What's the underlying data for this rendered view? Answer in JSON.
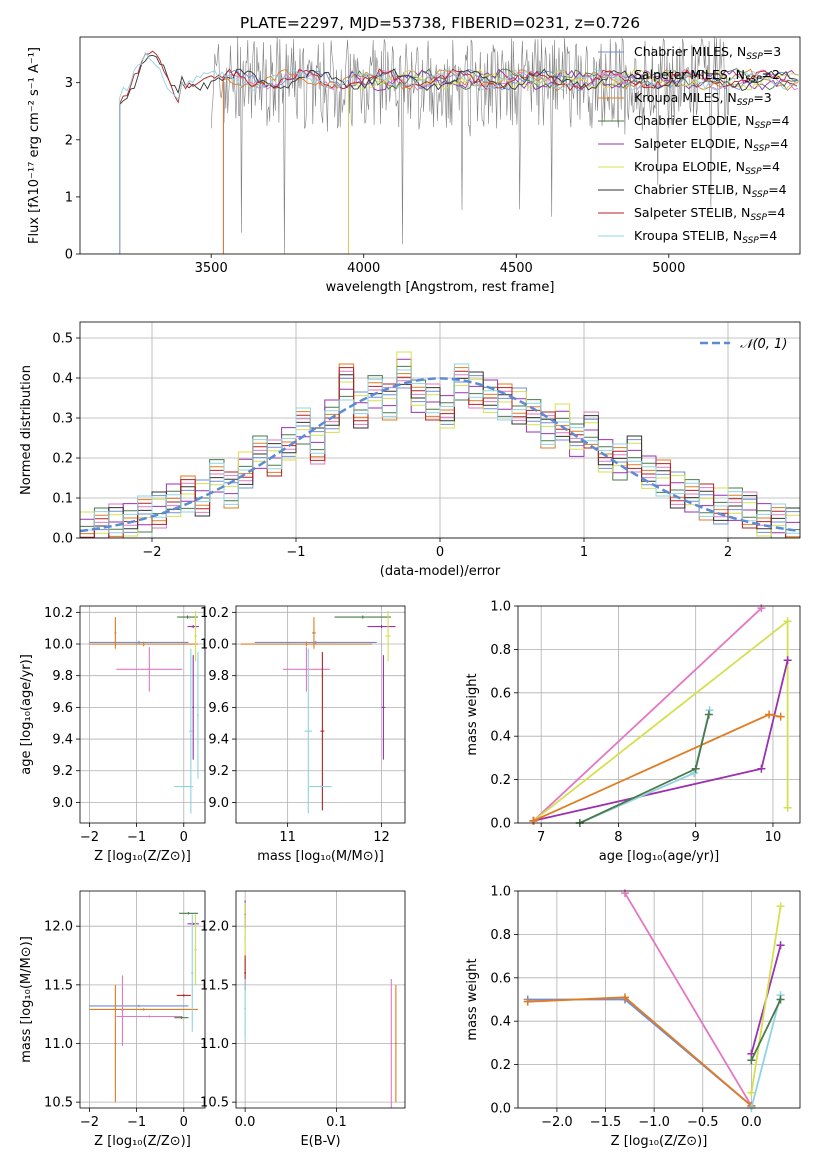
{
  "chart_data": [
    {
      "type": "line",
      "title": "PLATE=2297, MJD=53738, FIBERID=0231, z=0.726",
      "xlabel": "wavelength [Angstrom, rest frame]",
      "ylabel": "Flux [fλ10⁻¹⁷ erg cm⁻² s⁻¹ A⁻¹]",
      "xlim": [
        3070,
        5430
      ],
      "ylim": [
        0,
        3.8
      ],
      "xticks": [
        3500,
        4000,
        4500,
        5000
      ],
      "yticks": [
        0,
        1,
        2,
        3
      ],
      "grid": false,
      "legend_position": "right",
      "legend": [
        {
          "label": "Chabrier MILES, N_SSP=3",
          "color": "#6e8fd6"
        },
        {
          "label": "Salpeter MILES, N_SSP=2",
          "color": "#e377c2"
        },
        {
          "label": "Kroupa MILES, N_SSP=3",
          "color": "#e07b20"
        },
        {
          "label": "Chabrier ELODIE, N_SSP=4",
          "color": "#4a7a4a"
        },
        {
          "label": "Salpeter ELODIE, N_SSP=4",
          "color": "#9b30b0"
        },
        {
          "label": "Kroupa ELODIE, N_SSP=4",
          "color": "#d4e050"
        },
        {
          "label": "Chabrier STELIB, N_SSP=4",
          "color": "#333333"
        },
        {
          "label": "Salpeter STELIB, N_SSP=4",
          "color": "#b22222"
        },
        {
          "label": "Kroupa STELIB, N_SSP=4",
          "color": "#8fd3e0"
        }
      ],
      "model_start_wavelength": {
        "MILES": 3540,
        "ELODIE": 3950,
        "STELIB": 3200
      },
      "model_plateau_flux": 3.05,
      "data_range": [
        3500,
        5200
      ]
    },
    {
      "type": "area",
      "xlabel": "(data-model)/error",
      "ylabel": "Normed distribution",
      "xlim": [
        -2.5,
        2.5
      ],
      "ylim": [
        0,
        0.54
      ],
      "xticks": [
        -2,
        -1,
        0,
        1,
        2
      ],
      "yticks": [
        0.0,
        0.1,
        0.2,
        0.3,
        0.4,
        0.5
      ],
      "grid": true,
      "legend_position": "top-right",
      "reference_label": "𝒩(0, 1)",
      "reference_curve": "standard normal pdf",
      "bin_width": 0.1,
      "histogram_bins": [
        -2.5,
        -2.4,
        -2.3,
        -2.2,
        -2.1,
        -2.0,
        -1.9,
        -1.8,
        -1.7,
        -1.6,
        -1.5,
        -1.4,
        -1.3,
        -1.2,
        -1.1,
        -1.0,
        -0.9,
        -0.8,
        -0.7,
        -0.6,
        -0.5,
        -0.4,
        -0.3,
        -0.2,
        -0.1,
        0.0,
        0.1,
        0.2,
        0.3,
        0.4,
        0.5,
        0.6,
        0.7,
        0.8,
        0.9,
        1.0,
        1.1,
        1.2,
        1.3,
        1.4,
        1.5,
        1.6,
        1.7,
        1.8,
        1.9,
        2.0,
        2.1,
        2.2,
        2.3,
        2.4
      ],
      "histogram_values": [
        0.02,
        0.03,
        0.04,
        0.05,
        0.06,
        0.07,
        0.09,
        0.11,
        0.1,
        0.16,
        0.12,
        0.17,
        0.21,
        0.2,
        0.24,
        0.28,
        0.23,
        0.3,
        0.39,
        0.32,
        0.37,
        0.34,
        0.42,
        0.35,
        0.34,
        0.32,
        0.39,
        0.37,
        0.35,
        0.34,
        0.33,
        0.31,
        0.27,
        0.29,
        0.24,
        0.27,
        0.21,
        0.19,
        0.21,
        0.16,
        0.15,
        0.12,
        0.11,
        0.09,
        0.08,
        0.08,
        0.07,
        0.05,
        0.04,
        0.03
      ]
    },
    {
      "type": "scatter",
      "xlabel": "Z [log₁₀(Z/Z⊙)]",
      "ylabel": "age  [log₁₀(age/yr)]",
      "xlim": [
        -2.2,
        0.45
      ],
      "ylim": [
        8.87,
        10.24
      ],
      "xticks": [
        -2,
        -1,
        0
      ],
      "yticks": [
        9.0,
        9.2,
        9.4,
        9.6,
        9.8,
        10.0,
        10.2
      ],
      "grid": true,
      "crosses": [
        {
          "color": "#6e8fd6",
          "x": -0.95,
          "xerr": 1.05,
          "y": 10.01,
          "yerr": 0.01
        },
        {
          "color": "#e07b20",
          "x": -0.85,
          "xerr": 1.15,
          "y": 10.0,
          "yerr": 0.015
        },
        {
          "color": "#e07b20",
          "x": -1.45,
          "xerr": 0.02,
          "y": 10.07,
          "yerr": 0.1
        },
        {
          "color": "#e377c2",
          "x": -0.73,
          "xerr": 0.7,
          "y": 9.84,
          "yerr": 0.14
        },
        {
          "color": "#9b30b0",
          "x": 0.2,
          "xerr": 0.12,
          "y": 10.11,
          "yerr": 0.01
        },
        {
          "color": "#9b30b0",
          "x": 0.2,
          "xerr": 0.02,
          "y": 9.6,
          "yerr": 0.33
        },
        {
          "color": "#4a7a4a",
          "x": 0.08,
          "xerr": 0.22,
          "y": 10.17,
          "yerr": 0.01
        },
        {
          "color": "#d4e050",
          "x": 0.25,
          "xerr": 0.03,
          "y": 10.05,
          "yerr": 0.16
        },
        {
          "color": "#8fd3e0",
          "x": 0.15,
          "xerr": 0.04,
          "y": 9.45,
          "yerr": 0.52
        },
        {
          "color": "#8fd3e0",
          "x": 0.0,
          "xerr": 0.2,
          "y": 9.1,
          "yerr": 0.005
        },
        {
          "color": "#8fd3e0",
          "x": 0.3,
          "xerr": 0.02,
          "y": 9.55,
          "yerr": 0.4
        }
      ]
    },
    {
      "type": "scatter",
      "xlabel": "mass [log₁₀(M/M⊙)]",
      "ylabel": "",
      "xlim": [
        10.45,
        12.25
      ],
      "ylim": [
        8.87,
        10.24
      ],
      "xticks": [
        11,
        12
      ],
      "yticks": [
        9.0,
        9.2,
        9.4,
        9.6,
        9.8,
        10.0,
        10.2
      ],
      "grid": true,
      "crosses": [
        {
          "color": "#6e8fd6",
          "x": 11.3,
          "xerr": 0.65,
          "y": 10.01,
          "yerr": 0.01
        },
        {
          "color": "#e07b20",
          "x": 11.2,
          "xerr": 0.7,
          "y": 10.0,
          "yerr": 0.015
        },
        {
          "color": "#e07b20",
          "x": 11.28,
          "xerr": 0.02,
          "y": 10.07,
          "yerr": 0.1
        },
        {
          "color": "#e377c2",
          "x": 11.2,
          "xerr": 0.25,
          "y": 9.84,
          "yerr": 0.14
        },
        {
          "color": "#9b30b0",
          "x": 12.0,
          "xerr": 0.15,
          "y": 10.11,
          "yerr": 0.01
        },
        {
          "color": "#9b30b0",
          "x": 12.02,
          "xerr": 0.02,
          "y": 9.6,
          "yerr": 0.33
        },
        {
          "color": "#4a7a4a",
          "x": 11.8,
          "xerr": 0.3,
          "y": 10.17,
          "yerr": 0.01
        },
        {
          "color": "#d4e050",
          "x": 12.07,
          "xerr": 0.03,
          "y": 10.05,
          "yerr": 0.16
        },
        {
          "color": "#8fd3e0",
          "x": 11.22,
          "xerr": 0.04,
          "y": 9.45,
          "yerr": 0.52
        },
        {
          "color": "#b22222",
          "x": 11.37,
          "xerr": 0.02,
          "y": 9.45,
          "yerr": 0.5
        },
        {
          "color": "#8fd3e0",
          "x": 11.35,
          "xerr": 0.12,
          "y": 9.1,
          "yerr": 0.005
        }
      ]
    },
    {
      "type": "line",
      "xlabel": "age  [log₁₀(age/yr)]",
      "ylabel": "mass weight",
      "xlim": [
        6.7,
        10.35
      ],
      "ylim": [
        0,
        1.0
      ],
      "xticks": [
        7,
        8,
        9,
        10
      ],
      "yticks": [
        0.0,
        0.2,
        0.4,
        0.6,
        0.8,
        1.0
      ],
      "grid": true,
      "series": [
        {
          "color": "#e377c2",
          "x": [
            6.9,
            9.85
          ],
          "y": [
            0.01,
            0.99
          ]
        },
        {
          "color": "#d4e050",
          "x": [
            6.9,
            10.19,
            10.19
          ],
          "y": [
            0.01,
            0.93,
            0.07
          ]
        },
        {
          "color": "#9b30b0",
          "x": [
            6.9,
            9.85,
            10.19
          ],
          "y": [
            0.01,
            0.25,
            0.75
          ]
        },
        {
          "color": "#e07b20",
          "x": [
            6.9,
            9.95,
            10.1
          ],
          "y": [
            0.01,
            0.5,
            0.49
          ]
        },
        {
          "color": "#8fd3e0",
          "x": [
            7.5,
            8.98,
            9.18
          ],
          "y": [
            0.0,
            0.23,
            0.52
          ]
        },
        {
          "color": "#4a7a4a",
          "x": [
            7.5,
            9.0,
            9.17
          ],
          "y": [
            0.0,
            0.25,
            0.5
          ]
        }
      ]
    },
    {
      "type": "scatter",
      "xlabel": "Z [log₁₀(Z/Z⊙)]",
      "ylabel": "mass [log₁₀(M/M⊙)]",
      "xlim": [
        -2.2,
        0.45
      ],
      "ylim": [
        10.45,
        12.3
      ],
      "xticks": [
        -2,
        -1,
        0
      ],
      "yticks": [
        10.5,
        11.0,
        11.5,
        12.0
      ],
      "grid": true,
      "crosses": [
        {
          "color": "#6e8fd6",
          "x": -0.95,
          "xerr": 1.05,
          "y": 11.32,
          "yerr": 0.01
        },
        {
          "color": "#e07b20",
          "x": -0.85,
          "xerr": 1.15,
          "y": 11.29,
          "yerr": 0.01
        },
        {
          "color": "#e07b20",
          "x": -1.45,
          "xerr": 0.02,
          "y": 11.0,
          "yerr": 0.5
        },
        {
          "color": "#e377c2",
          "x": -0.73,
          "xerr": 0.7,
          "y": 11.23,
          "yerr": 0.01
        },
        {
          "color": "#e377c2",
          "x": -1.3,
          "xerr": 0.02,
          "y": 11.28,
          "yerr": 0.3
        },
        {
          "color": "#9b30b0",
          "x": 0.2,
          "xerr": 0.12,
          "y": 12.02,
          "yerr": 0.01
        },
        {
          "color": "#4a7a4a",
          "x": 0.1,
          "xerr": 0.2,
          "y": 12.11,
          "yerr": 0.01
        },
        {
          "color": "#b22222",
          "x": 0.0,
          "xerr": 0.15,
          "y": 11.41,
          "yerr": 0.01
        },
        {
          "color": "#4a7a4a",
          "x": -0.05,
          "xerr": 0.15,
          "y": 11.22,
          "yerr": 0.01
        },
        {
          "color": "#d4e050",
          "x": 0.25,
          "xerr": 0.03,
          "y": 11.8,
          "yerr": 0.3
        },
        {
          "color": "#8fd3e0",
          "x": 0.18,
          "xerr": 0.03,
          "y": 11.6,
          "yerr": 0.5
        }
      ]
    },
    {
      "type": "scatter",
      "xlabel": "E(B-V)",
      "ylabel": "",
      "xlim": [
        -0.01,
        0.175
      ],
      "ylim": [
        10.45,
        12.3
      ],
      "xticks": [
        0.0,
        0.1
      ],
      "yticks": [
        10.5,
        11.0,
        11.5,
        12.0
      ],
      "grid": true,
      "crosses": [
        {
          "color": "#9b30b0",
          "x": 0.0,
          "xerr": 0.001,
          "y": 12.1,
          "yerr": 0.12
        },
        {
          "color": "#d4e050",
          "x": 0.0,
          "xerr": 0.001,
          "y": 11.9,
          "yerr": 0.3
        },
        {
          "color": "#b22222",
          "x": 0.0,
          "xerr": 0.001,
          "y": 11.6,
          "yerr": 0.15
        },
        {
          "color": "#8fd3e0",
          "x": 0.0,
          "xerr": 0.001,
          "y": 11.3,
          "yerr": 0.25
        },
        {
          "color": "#e377c2",
          "x": 0.16,
          "xerr": 0.001,
          "y": 11.0,
          "yerr": 0.55
        },
        {
          "color": "#e07b20",
          "x": 0.165,
          "xerr": 0.001,
          "y": 11.0,
          "yerr": 0.5
        }
      ]
    },
    {
      "type": "line",
      "xlabel": "Z [log₁₀(Z/Z⊙)]",
      "ylabel": "mass weight",
      "xlim": [
        -2.4,
        0.5
      ],
      "ylim": [
        0,
        1.0
      ],
      "xticks": [
        -2.0,
        -1.5,
        -1.0,
        -0.5,
        0.0
      ],
      "yticks": [
        0.0,
        0.2,
        0.4,
        0.6,
        0.8,
        1.0
      ],
      "grid": true,
      "series": [
        {
          "color": "#e377c2",
          "x": [
            -1.3,
            0.0
          ],
          "y": [
            0.99,
            0.01
          ]
        },
        {
          "color": "#6e8fd6",
          "x": [
            -2.3,
            -1.3,
            0.0
          ],
          "y": [
            0.5,
            0.5,
            0.01
          ]
        },
        {
          "color": "#e07b20",
          "x": [
            -2.3,
            -1.3,
            0.0
          ],
          "y": [
            0.49,
            0.51,
            0.01
          ]
        },
        {
          "color": "#9b30b0",
          "x": [
            0.0,
            0.3
          ],
          "y": [
            0.25,
            0.75
          ]
        },
        {
          "color": "#d4e050",
          "x": [
            0.0,
            0.3
          ],
          "y": [
            0.07,
            0.93
          ]
        },
        {
          "color": "#8fd3e0",
          "x": [
            0.0,
            0.3
          ],
          "y": [
            0.0,
            0.52
          ]
        },
        {
          "color": "#4a7a4a",
          "x": [
            0.0,
            0.3
          ],
          "y": [
            0.22,
            0.5
          ]
        }
      ]
    }
  ]
}
